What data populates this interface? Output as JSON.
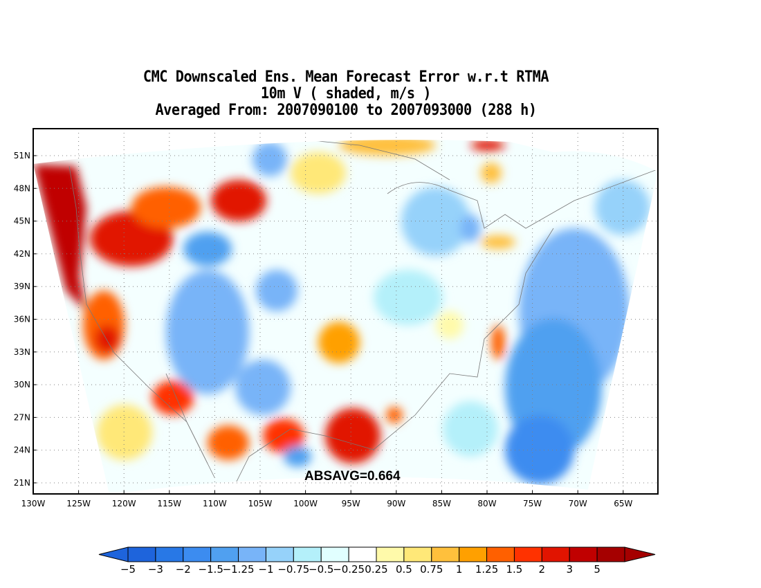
{
  "title": {
    "line1": "CMC Downscaled Ens. Mean Forecast Error w.r.t RTMA",
    "line2": "10m V ( shaded, m/s )",
    "line3": "Averaged From: 2007090100 to 2007093000 (288 h)"
  },
  "map": {
    "lon_labels": [
      "130W",
      "125W",
      "120W",
      "115W",
      "110W",
      "105W",
      "100W",
      "95W",
      "90W",
      "85W",
      "80W",
      "75W",
      "70W",
      "65W"
    ],
    "lat_labels": [
      "51N",
      "48N",
      "45N",
      "42N",
      "39N",
      "36N",
      "33N",
      "30N",
      "27N",
      "24N",
      "21N"
    ],
    "lon_range": [
      -130,
      -62
    ],
    "lat_range": [
      20,
      52
    ],
    "annotation": "ABSAVG=0.664",
    "grid": "dotted"
  },
  "colorbar": {
    "labels": [
      "-5",
      "-3",
      "-2",
      "-1.5",
      "-1.25",
      "-1",
      "-0.75",
      "-0.5",
      "-0.25",
      "0.25",
      "0.5",
      "0.75",
      "1",
      "1.25",
      "1.5",
      "2",
      "3",
      "5"
    ],
    "colors": [
      "#1e64dc",
      "#2878e6",
      "#3c8cf0",
      "#50a0f0",
      "#78b4f8",
      "#96d2fa",
      "#b4f0fa",
      "#e1ffff",
      "#ffffff",
      "#fffaaa",
      "#ffe878",
      "#ffc03c",
      "#ffa000",
      "#ff6000",
      "#ff3200",
      "#e11400",
      "#c00000",
      "#a50000"
    ],
    "under_color": "#1e64dc",
    "over_color": "#a50000"
  },
  "icons": {
    "under_arrow": "triangle-left",
    "over_arrow": "triangle-right"
  }
}
